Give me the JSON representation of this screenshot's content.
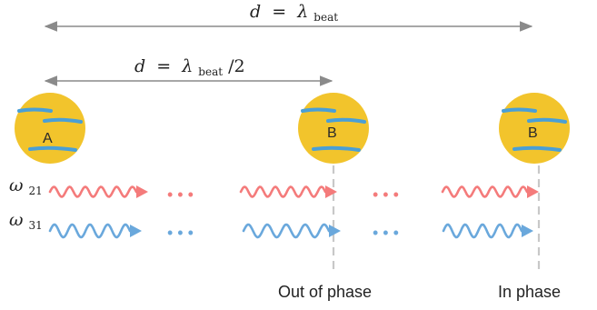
{
  "colors": {
    "atom_fill": "#f2c42c",
    "atom_stripe": "#4a9fd6",
    "wave_red": "#f47b7b",
    "wave_blue": "#6aa8dc",
    "arrow_gray": "#8a8a8a",
    "dash_gray": "#c8c8c8"
  },
  "top_distance": {
    "lhs": "d",
    "eq": "=",
    "sym": "λ",
    "sub": "beat"
  },
  "half_distance": {
    "lhs": "d",
    "eq": "=",
    "sym": "λ",
    "sub": "beat",
    "tail": "/2"
  },
  "atoms": [
    {
      "label": "A"
    },
    {
      "label": "B"
    },
    {
      "label": "B"
    }
  ],
  "frequencies": [
    {
      "sym": "ω",
      "sub": "21",
      "color_key": "wave_red"
    },
    {
      "sym": "ω",
      "sub": "31",
      "color_key": "wave_blue"
    }
  ],
  "ellipsis": "• • •",
  "captions": {
    "out_of_phase": "Out of phase",
    "in_phase": "In phase"
  }
}
